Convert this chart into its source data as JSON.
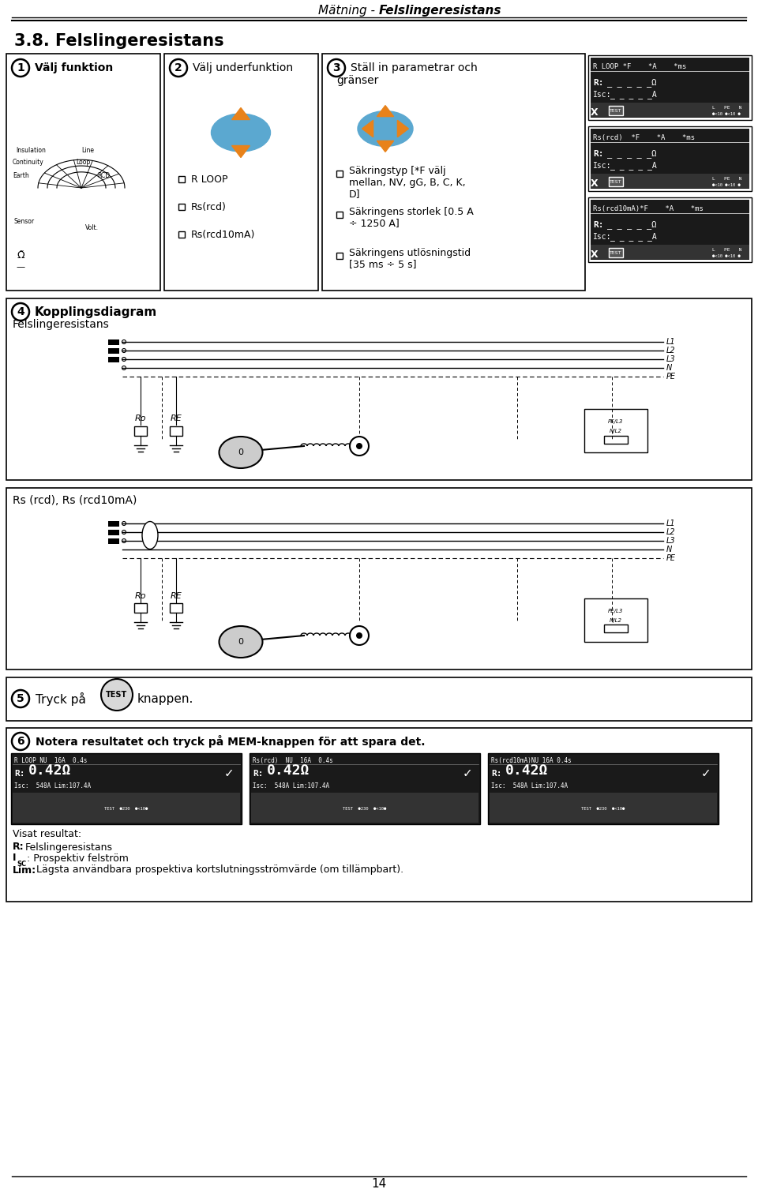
{
  "page_title_normal": "Mätning - ",
  "page_title_bold": "Felslingeresistans",
  "section_title": "3.8. Felslingeresistans",
  "bg_color": "#ffffff",
  "step1_title": "Välj funktion",
  "step2_title": "Välj underfunktion",
  "step3_title": "Ställ in parametrar och\ngränser",
  "step2_items": [
    "R LOOP",
    "Rs(rcd)",
    "Rs(rcd10mA)"
  ],
  "step3_items": [
    "Säkringstyp [*F välj\nmellan, NV, gG, B, C, K,\nD]",
    "Säkringens storlek [0.5 A\n÷ 1250 A]",
    "Säkringens utlösningstid\n[35 ms ÷ 5 s]"
  ],
  "step4_title": "Kopplingsdiagram",
  "step4_subtitle": "Felslingeresistans",
  "step4b_subtitle": "Rs (rcd), Rs (rcd10mA)",
  "step5_text": "Tryck på",
  "step5_text2": "knappen.",
  "step6_title": "Notera resultatet och tryck på MEM-knappen för att spara det.",
  "visat_lines": [
    "Visat resultat:",
    "Felslingeresistans",
    "Prospektiv felström",
    "Lägsta användbara prospektiva kortslutningsströmvärde (om tillämpbart)."
  ],
  "page_number": "14",
  "orange_color": "#e8821a",
  "blue_color": "#5ba8d0",
  "lcd_bg": "#1a1a1a",
  "lcd_fg": "#ffffff",
  "lcd_header1": "R LOOP *F    *A    *ms",
  "lcd_header2": "Rs(rcd)  *F    *A    *ms",
  "lcd_header3": "Rs(rcd10mA)*F    *A    *ms",
  "res_header1": "R LOOP NU  16A  0.4s",
  "res_header2": "Rs(rcd)  NU  16A  0.4s",
  "res_header3": "Rs(rcd10mA)NU 16A 0.4s"
}
